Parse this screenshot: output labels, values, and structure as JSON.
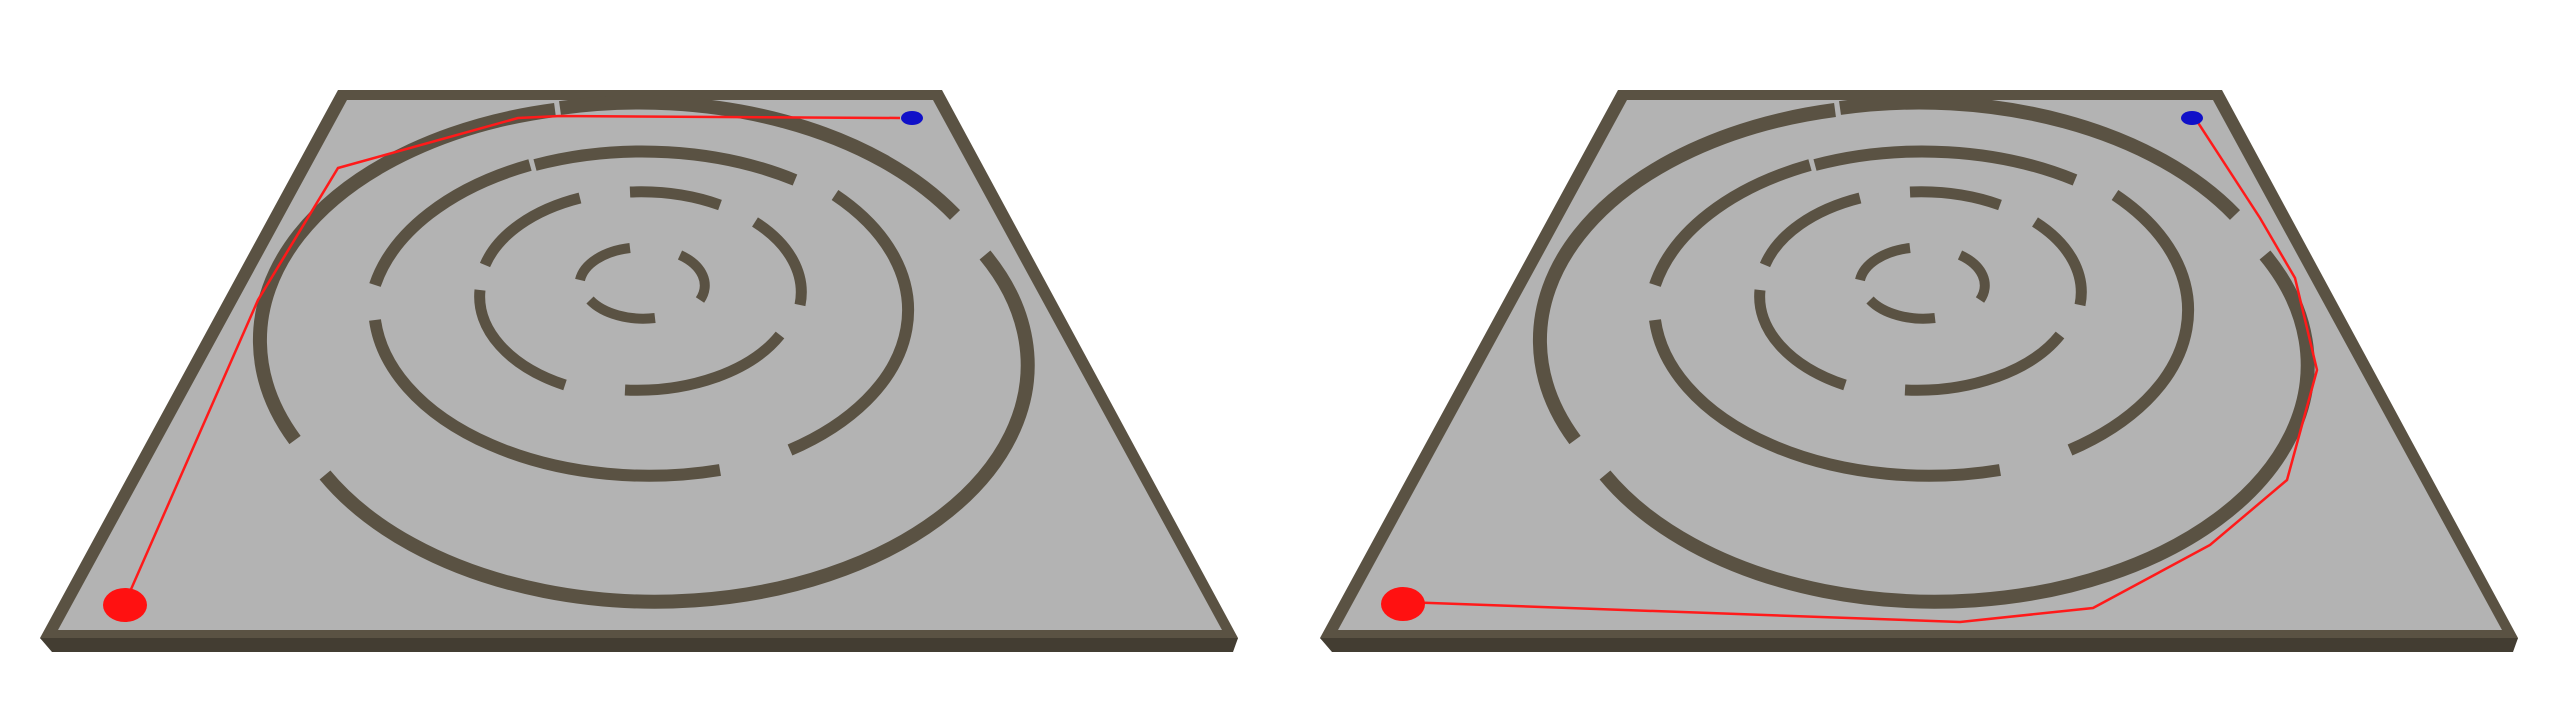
{
  "scenes": [
    {
      "id": "left",
      "path_label": "",
      "start_marker": "start-point",
      "goal_marker": "goal-point"
    },
    {
      "id": "right",
      "path_label": "",
      "start_marker": "start-point",
      "goal_marker": "goal-point"
    }
  ],
  "colors": {
    "background": "#ffffff",
    "floor": "#b3b3b3",
    "wall": "#5a5243",
    "wall_dark": "#433d32",
    "path": "#ff1a1a",
    "start": "#ff1111",
    "goal": "#1010c8"
  }
}
